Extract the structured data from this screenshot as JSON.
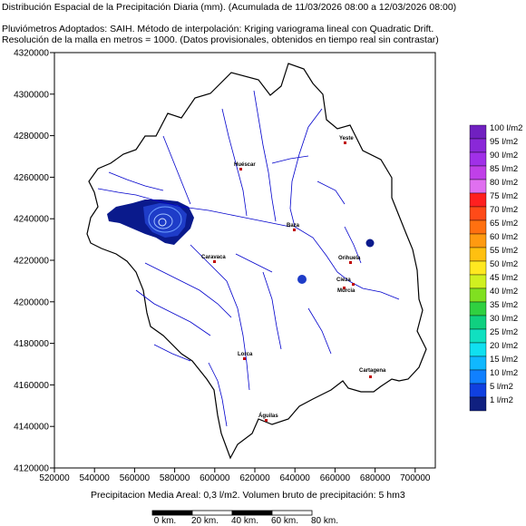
{
  "header": {
    "title": "Distribución Espacial de la Precipitación Diaria (mm). (Acumulada de 11/03/2026 08:00 a 12/03/2026 08:00)",
    "line2": "Pluviómetros Adoptados: SAIH.  Método de interpolación: Kriging variograma lineal con Quadratic Drift.",
    "line3": "Resolución de la malla en metros = 1000. (Datos provisionales, obtenidos en tiempo real sin contrastar)"
  },
  "map": {
    "y_ticks": [
      "4320000",
      "4300000",
      "4280000",
      "4260000",
      "4240000",
      "4220000",
      "4200000",
      "4180000",
      "4160000",
      "4140000",
      "4120000"
    ],
    "x_ticks": [
      "520000",
      "540000",
      "560000",
      "580000",
      "600000",
      "620000",
      "640000",
      "660000",
      "680000",
      "700000"
    ],
    "cities": [
      "Yeste",
      "Huéscar",
      "Baza",
      "Caravaca",
      "Cieza",
      "Orihuela",
      "Murcia",
      "Lorca",
      "Cartagena",
      "Águilas"
    ],
    "colors": {
      "basin_outline": "#000000",
      "rivers": "#0000cc",
      "rain_core": "#0a1a8c",
      "rain_mid": "#1e3cc8",
      "rain_light": "#6fa0ff"
    }
  },
  "legend": {
    "items": [
      {
        "label": "100 l/m2",
        "color": "#7020c0"
      },
      {
        "label": "95 l/m2",
        "color": "#8a28d8"
      },
      {
        "label": "90 l/m2",
        "color": "#a030e8"
      },
      {
        "label": "85 l/m2",
        "color": "#c040e8"
      },
      {
        "label": "80 l/m2",
        "color": "#e070f0"
      },
      {
        "label": "75 l/m2",
        "color": "#ff2020"
      },
      {
        "label": "70 l/m2",
        "color": "#ff4a18"
      },
      {
        "label": "65 l/m2",
        "color": "#ff7010"
      },
      {
        "label": "60 l/m2",
        "color": "#ff9a10"
      },
      {
        "label": "55 l/m2",
        "color": "#ffc010"
      },
      {
        "label": "50 l/m2",
        "color": "#ffe820"
      },
      {
        "label": "45 l/m2",
        "color": "#d0f020"
      },
      {
        "label": "40 l/m2",
        "color": "#80e020"
      },
      {
        "label": "35 l/m2",
        "color": "#30d040"
      },
      {
        "label": "30 l/m2",
        "color": "#10d080"
      },
      {
        "label": "25 l/m2",
        "color": "#10e0c0"
      },
      {
        "label": "20 l/m2",
        "color": "#10e0f0"
      },
      {
        "label": "15 l/m2",
        "color": "#10b8ff"
      },
      {
        "label": "10 l/m2",
        "color": "#1080ff"
      },
      {
        "label": "5 l/m2",
        "color": "#1040e0"
      },
      {
        "label": "1 l/m2",
        "color": "#102080"
      }
    ]
  },
  "footer": {
    "summary": "Precipitacion Media Areal: 0,3 l/m2. Volumen bruto de precipitación: 5 hm3"
  },
  "scalebar": {
    "labels": [
      "0 km.",
      "20 km.",
      "40 km.",
      "60 km.",
      "80 km."
    ]
  }
}
